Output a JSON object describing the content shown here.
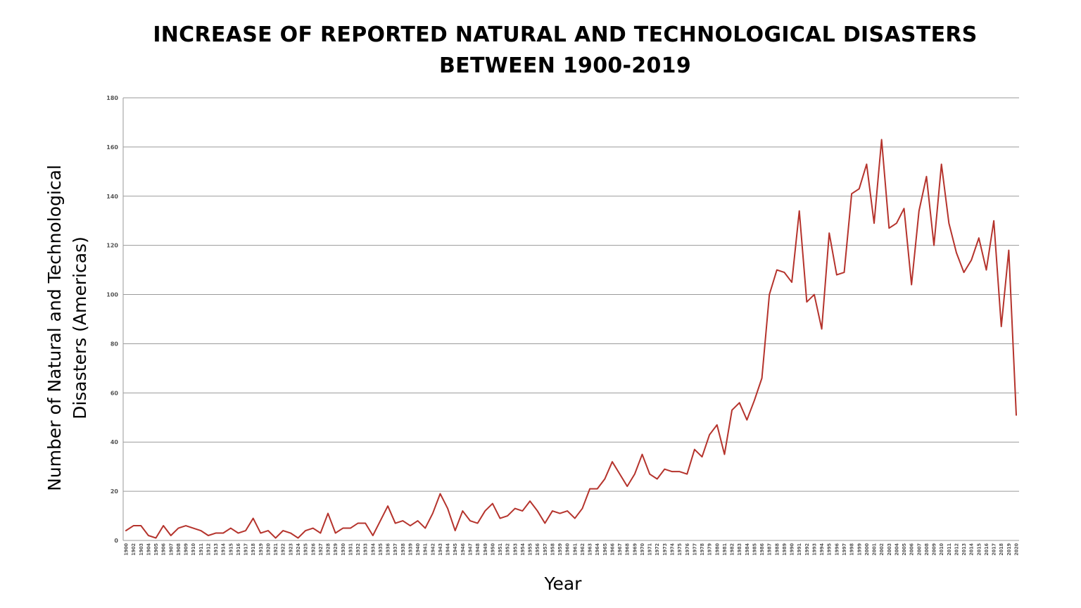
{
  "chart_data": {
    "type": "line",
    "title_lines": [
      "INCREASE OF REPORTED NATURAL AND TECHNOLOGICAL DISASTERS",
      "BETWEEN 1900-2019"
    ],
    "xlabel": "Year",
    "ylabel_lines": [
      "Number of Natural and Technological",
      "Disasters (Americas)"
    ],
    "ylim": [
      0,
      180
    ],
    "yticks": [
      0,
      20,
      40,
      60,
      80,
      100,
      120,
      140,
      160,
      180
    ],
    "grid": true,
    "line_color": "#b5332c",
    "x": [
      1900,
      1902,
      1903,
      1904,
      1905,
      1906,
      1907,
      1908,
      1909,
      1910,
      1911,
      1912,
      1913,
      1914,
      1915,
      1916,
      1917,
      1918,
      1919,
      1920,
      1921,
      1922,
      1923,
      1924,
      1925,
      1926,
      1927,
      1928,
      1929,
      1930,
      1931,
      1932,
      1933,
      1934,
      1935,
      1936,
      1937,
      1938,
      1939,
      1940,
      1941,
      1942,
      1943,
      1944,
      1945,
      1946,
      1947,
      1948,
      1949,
      1950,
      1951,
      1952,
      1953,
      1954,
      1955,
      1956,
      1957,
      1958,
      1959,
      1960,
      1961,
      1962,
      1963,
      1964,
      1965,
      1966,
      1967,
      1968,
      1969,
      1970,
      1971,
      1972,
      1973,
      1974,
      1975,
      1976,
      1977,
      1978,
      1979,
      1980,
      1981,
      1982,
      1983,
      1984,
      1985,
      1986,
      1987,
      1988,
      1989,
      1990,
      1991,
      1992,
      1993,
      1994,
      1995,
      1996,
      1997,
      1998,
      1999,
      2000,
      2001,
      2002,
      2003,
      2004,
      2005,
      2006,
      2007,
      2008,
      2009,
      2010,
      2011,
      2012,
      2013,
      2014,
      2015,
      2016,
      2017,
      2018,
      2019,
      2020
    ],
    "series": [
      {
        "values": [
          4,
          6,
          6,
          2,
          1,
          6,
          2,
          5,
          6,
          5,
          4,
          2,
          3,
          3,
          5,
          3,
          4,
          9,
          3,
          4,
          1,
          4,
          3,
          1,
          4,
          5,
          3,
          11,
          3,
          5,
          5,
          7,
          7,
          2,
          8,
          14,
          7,
          8,
          6,
          8,
          5,
          11,
          19,
          13,
          4,
          12,
          8,
          7,
          12,
          15,
          9,
          10,
          13,
          12,
          16,
          12,
          7,
          12,
          11,
          12,
          9,
          13,
          21,
          21,
          25,
          32,
          27,
          22,
          27,
          35,
          27,
          25,
          29,
          28,
          28,
          27,
          37,
          34,
          43,
          47,
          35,
          53,
          56,
          49,
          57,
          66,
          100,
          110,
          109,
          105,
          134,
          97,
          100,
          86,
          125,
          108,
          109,
          141,
          143,
          153,
          129,
          163,
          127,
          129,
          135,
          104,
          134,
          148,
          120,
          153,
          129,
          117,
          109,
          114,
          123,
          110,
          130,
          87,
          118,
          51
        ]
      }
    ]
  }
}
